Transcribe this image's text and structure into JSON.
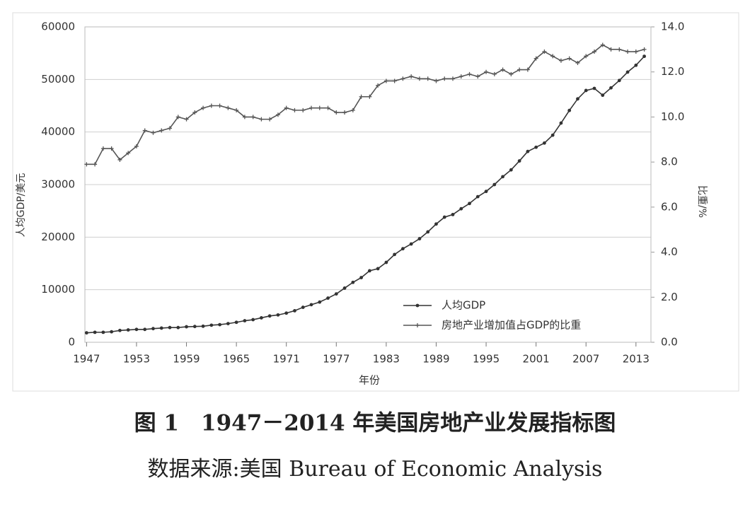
{
  "chart_data": {
    "type": "line",
    "title": "图 1　1947－2014 年美国房地产业发展指标图",
    "subtitle": "数据来源:美国 Bureau of Economic Analysis",
    "x_label": "年份",
    "y_label": "人均GDP/美元",
    "y2_label": "比重/%",
    "x": [
      1947,
      1948,
      1949,
      1950,
      1951,
      1952,
      1953,
      1954,
      1955,
      1956,
      1957,
      1958,
      1959,
      1960,
      1961,
      1962,
      1963,
      1964,
      1965,
      1966,
      1967,
      1968,
      1969,
      1970,
      1971,
      1972,
      1973,
      1974,
      1975,
      1976,
      1977,
      1978,
      1979,
      1980,
      1981,
      1982,
      1983,
      1984,
      1985,
      1986,
      1987,
      1988,
      1989,
      1990,
      1991,
      1992,
      1993,
      1994,
      1995,
      1996,
      1997,
      1998,
      1999,
      2000,
      2001,
      2002,
      2003,
      2004,
      2005,
      2006,
      2007,
      2008,
      2009,
      2010,
      2011,
      2012,
      2013,
      2014
    ],
    "xlim": [
      1946.8,
      2014.8
    ],
    "xticks": [
      1947,
      1953,
      1959,
      1965,
      1971,
      1977,
      1983,
      1989,
      1995,
      2001,
      2007,
      2013
    ],
    "ylim": [
      0,
      60000
    ],
    "yticks": [
      0,
      10000,
      20000,
      30000,
      40000,
      50000,
      60000
    ],
    "y2lim": [
      0,
      14
    ],
    "y2ticks": [
      {
        "value": 0,
        "label": "0.0"
      },
      {
        "value": 2,
        "label": "2.0"
      },
      {
        "value": 4,
        "label": "4.0"
      },
      {
        "value": 6,
        "label": "6.0"
      },
      {
        "value": 8,
        "label": "8.0"
      },
      {
        "value": 10,
        "label": "10.0"
      },
      {
        "value": 12,
        "label": "12.0"
      },
      {
        "value": 14,
        "label": "14.0"
      }
    ],
    "grid": true,
    "legend": "lower-right",
    "series": [
      {
        "name": "人均GDP",
        "color": "#333333",
        "marker": "dot",
        "values": [
          1800,
          1900,
          1900,
          2000,
          2250,
          2350,
          2450,
          2450,
          2600,
          2700,
          2800,
          2800,
          2950,
          3000,
          3050,
          3250,
          3350,
          3550,
          3800,
          4100,
          4300,
          4650,
          5000,
          5200,
          5550,
          6000,
          6650,
          7150,
          7650,
          8400,
          9200,
          10300,
          11400,
          12300,
          13600,
          14000,
          15200,
          16700,
          17800,
          18700,
          19700,
          21000,
          22500,
          23800,
          24300,
          25400,
          26400,
          27700,
          28700,
          30000,
          31500,
          32800,
          34500,
          36300,
          37100,
          37900,
          39400,
          41700,
          44100,
          46300,
          47900,
          48300,
          47000,
          48400,
          49800,
          51400,
          52700,
          54400
        ]
      },
      {
        "name": "房地产业增加值占GDP的比重",
        "color": "#555555",
        "marker": "plus",
        "axis": "y2",
        "values": [
          7.9,
          7.9,
          8.6,
          8.6,
          8.1,
          8.4,
          8.7,
          9.4,
          9.3,
          9.4,
          9.5,
          10.0,
          9.9,
          10.2,
          10.4,
          10.5,
          10.5,
          10.4,
          10.3,
          10.0,
          10.0,
          9.9,
          9.9,
          10.1,
          10.4,
          10.3,
          10.3,
          10.4,
          10.4,
          10.4,
          10.2,
          10.2,
          10.3,
          10.9,
          10.9,
          11.4,
          11.6,
          11.6,
          11.7,
          11.8,
          11.7,
          11.7,
          11.6,
          11.7,
          11.7,
          11.8,
          11.9,
          11.8,
          12.0,
          11.9,
          12.1,
          11.9,
          12.1,
          12.1,
          12.6,
          12.9,
          12.7,
          12.5,
          12.6,
          12.4,
          12.7,
          12.9,
          13.2,
          13.0,
          13.0,
          12.9,
          12.9,
          13.0
        ]
      }
    ]
  }
}
